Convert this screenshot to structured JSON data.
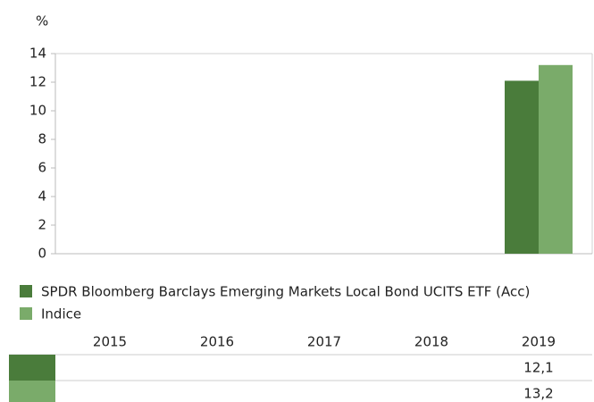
{
  "chart_data": {
    "type": "bar",
    "y_label": "%",
    "categories": [
      "2015",
      "2016",
      "2017",
      "2018",
      "2019"
    ],
    "series": [
      {
        "name": "SPDR Bloomberg Barclays Emerging Markets Local Bond UCITS ETF (Acc)",
        "color": "#4a7c3b",
        "values": [
          null,
          null,
          null,
          null,
          12.1
        ],
        "value_labels": [
          null,
          null,
          null,
          null,
          "12,1"
        ]
      },
      {
        "name": "Indice",
        "color": "#7aab6a",
        "values": [
          null,
          null,
          null,
          null,
          13.2
        ],
        "value_labels": [
          null,
          null,
          null,
          null,
          "13,2"
        ]
      }
    ],
    "ylim": [
      0,
      14
    ],
    "yticks": [
      0,
      2,
      4,
      6,
      8,
      10,
      12,
      14
    ],
    "grid": false
  }
}
